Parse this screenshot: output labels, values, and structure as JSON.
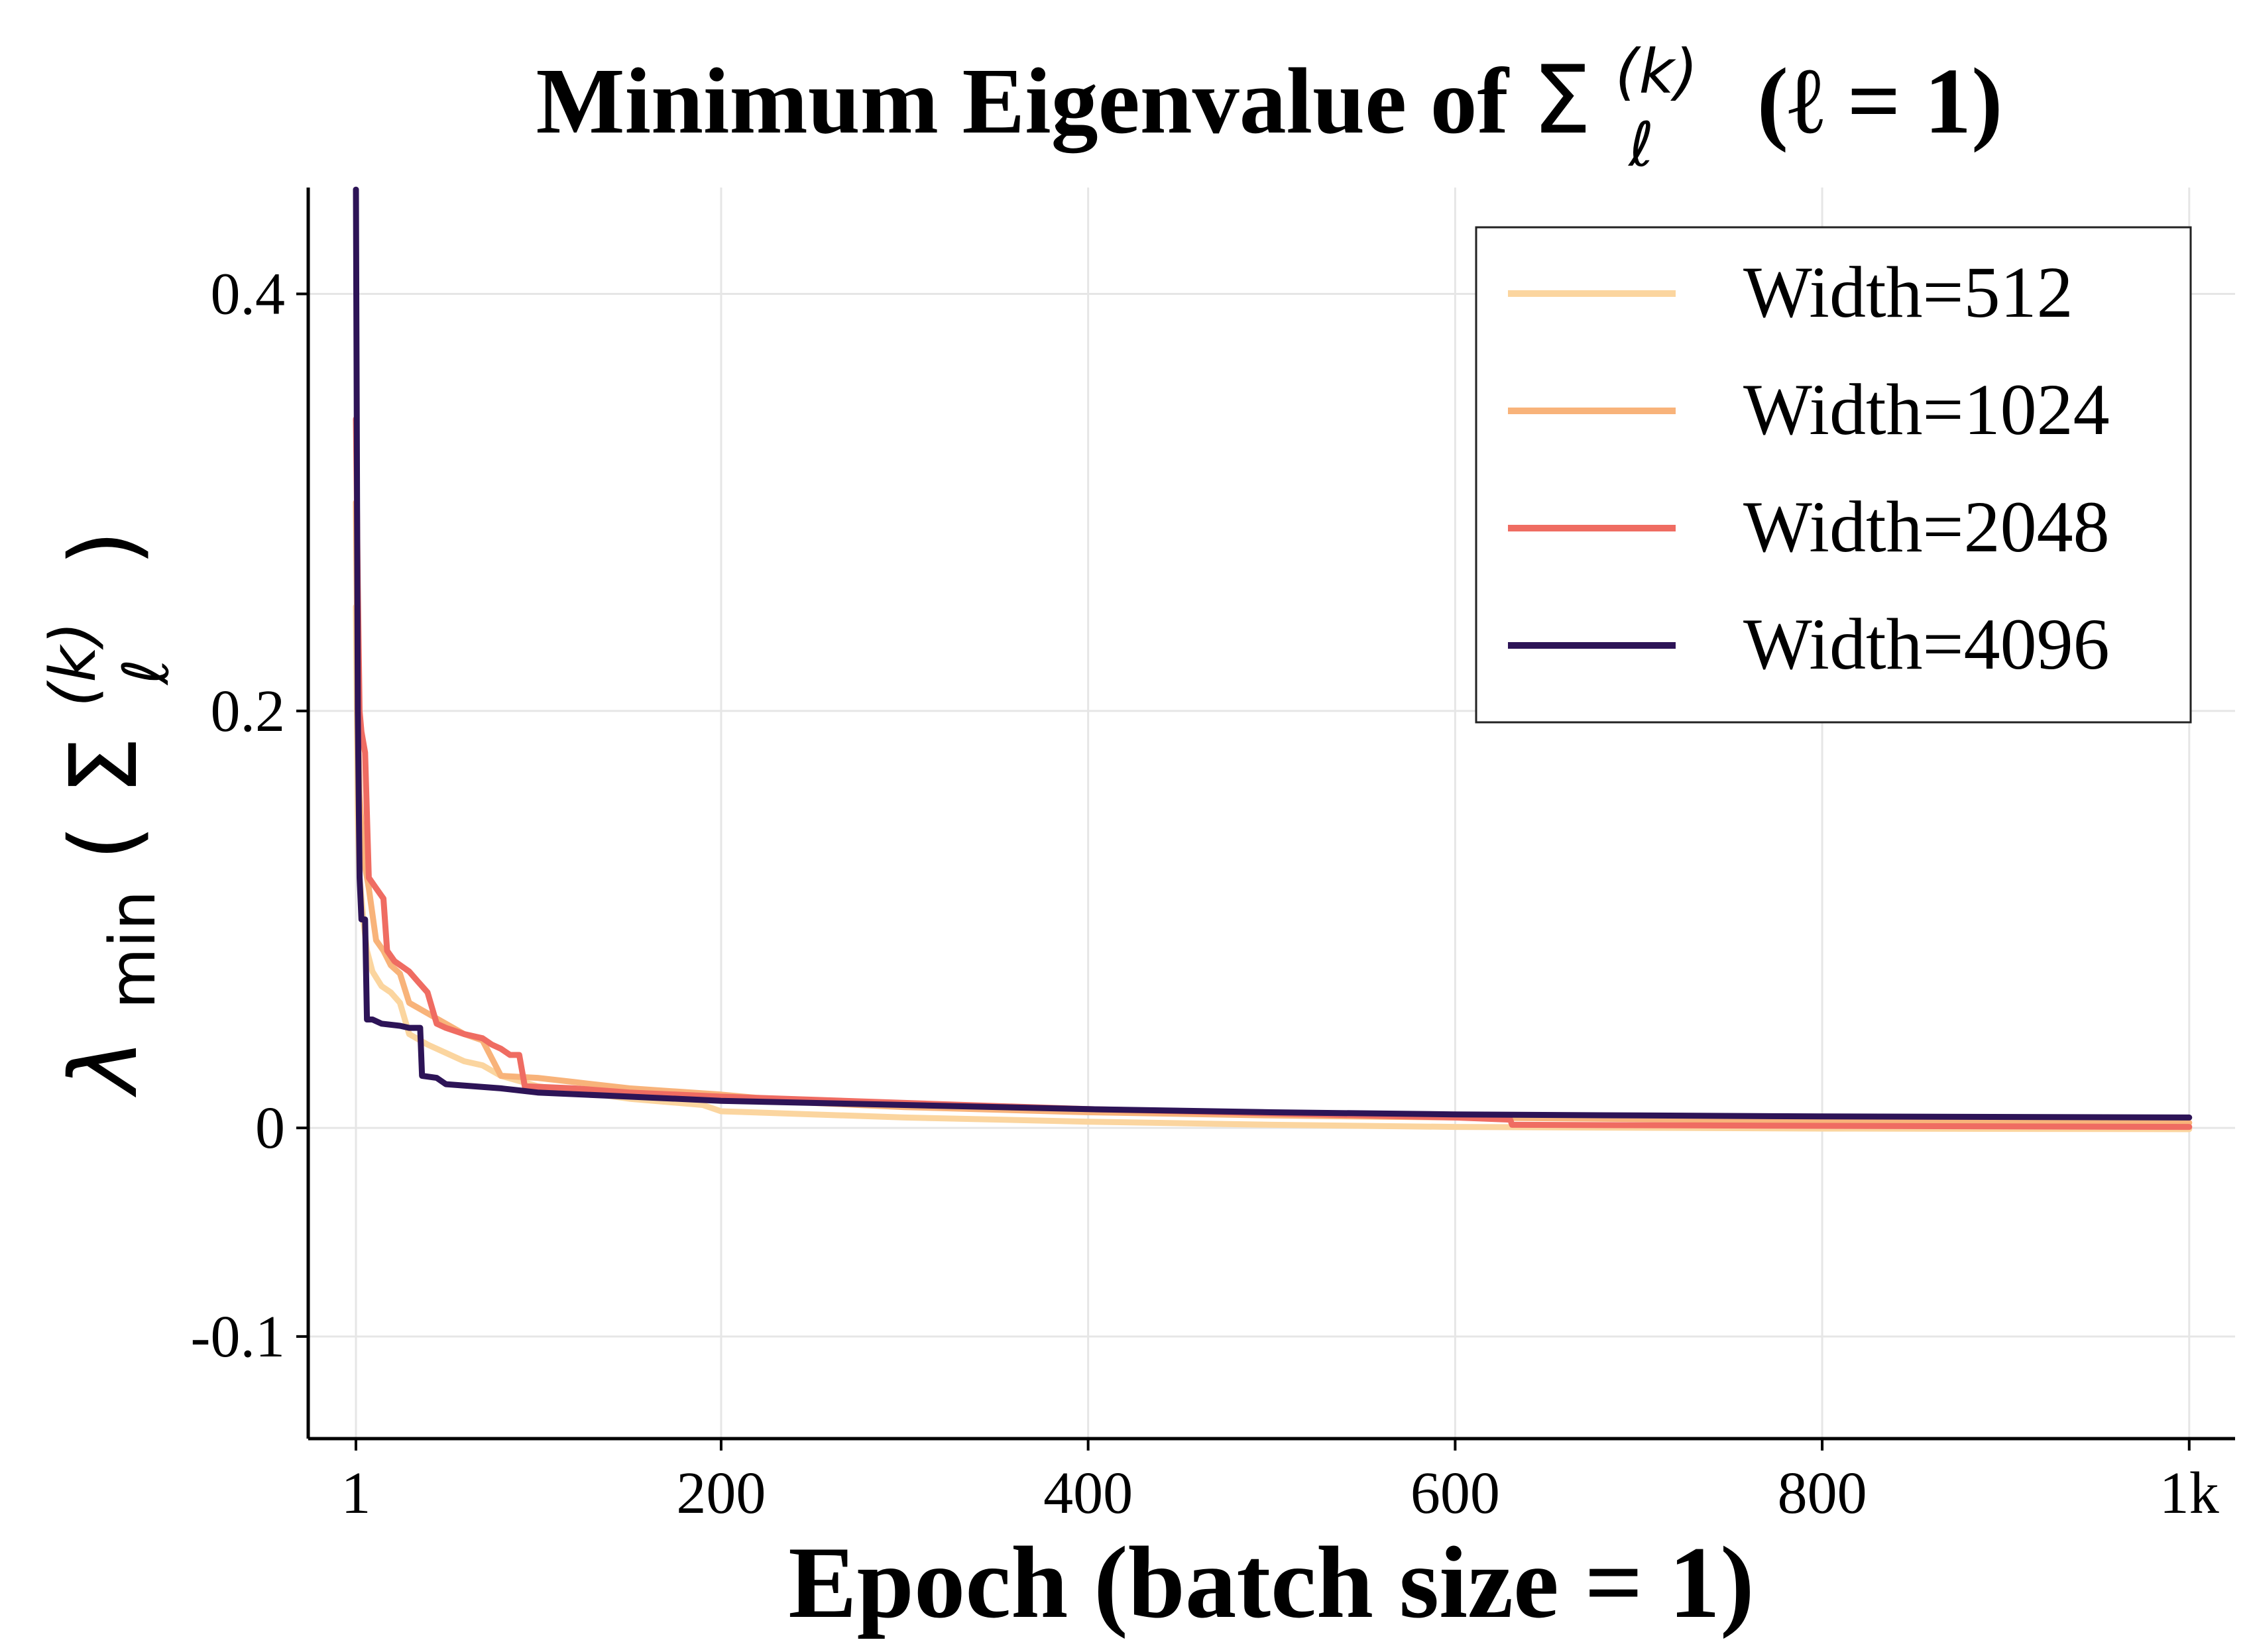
{
  "chart_data": {
    "type": "line",
    "title": {
      "prefix": "Minimum Eigenvalue of ",
      "symbol": "Σ",
      "superscript": "(k)",
      "subscript": "ℓ",
      "suffix": "(ℓ = 1)"
    },
    "xlabel": "Epoch (batch size = 1)",
    "ylabel": {
      "lambda": "λ",
      "sub": "min",
      "open": "(",
      "symbol": "Σ",
      "superscript": "(k)",
      "subscript": "ℓ",
      "close": ")"
    },
    "xlim": [
      -25,
      1025
    ],
    "ylim": [
      -0.149,
      0.451
    ],
    "x_ticks": [
      {
        "value": 1,
        "label": "1"
      },
      {
        "value": 200,
        "label": "200"
      },
      {
        "value": 400,
        "label": "400"
      },
      {
        "value": 600,
        "label": "600"
      },
      {
        "value": 800,
        "label": "800"
      },
      {
        "value": 1000,
        "label": "1k"
      }
    ],
    "y_ticks": [
      {
        "value": 0.4,
        "label": "0.4"
      },
      {
        "value": 0.2,
        "label": "0.2"
      },
      {
        "value": 0,
        "label": "0"
      },
      {
        "value": -0.1,
        "label": "-0.1"
      }
    ],
    "grid": true,
    "legend_position": "top-right",
    "series": [
      {
        "name": "Width=512",
        "color": "#fbd59f",
        "points": [
          [
            1,
            0.25
          ],
          [
            2,
            0.15
          ],
          [
            3,
            0.12
          ],
          [
            5,
            0.1
          ],
          [
            7,
            0.085
          ],
          [
            10,
            0.075
          ],
          [
            15,
            0.068
          ],
          [
            20,
            0.065
          ],
          [
            25,
            0.06
          ],
          [
            30,
            0.045
          ],
          [
            40,
            0.04
          ],
          [
            50,
            0.036
          ],
          [
            60,
            0.032
          ],
          [
            70,
            0.03
          ],
          [
            80,
            0.025
          ],
          [
            100,
            0.02
          ],
          [
            150,
            0.014
          ],
          [
            190,
            0.011
          ],
          [
            200,
            0.008
          ],
          [
            250,
            0.0065
          ],
          [
            300,
            0.005
          ],
          [
            400,
            0.003
          ],
          [
            500,
            0.0015
          ],
          [
            600,
            0.0005
          ],
          [
            800,
            -0.0003
          ],
          [
            1000,
            -0.0006
          ]
        ]
      },
      {
        "name": "Width=1024",
        "color": "#f8b37a",
        "points": [
          [
            1,
            0.3
          ],
          [
            2,
            0.2
          ],
          [
            3,
            0.16
          ],
          [
            5,
            0.13
          ],
          [
            8,
            0.115
          ],
          [
            12,
            0.09
          ],
          [
            16,
            0.085
          ],
          [
            20,
            0.078
          ],
          [
            25,
            0.074
          ],
          [
            30,
            0.06
          ],
          [
            40,
            0.055
          ],
          [
            50,
            0.05
          ],
          [
            60,
            0.045
          ],
          [
            70,
            0.042
          ],
          [
            80,
            0.025
          ],
          [
            100,
            0.024
          ],
          [
            120,
            0.022
          ],
          [
            150,
            0.019
          ],
          [
            200,
            0.016
          ],
          [
            250,
            0.012
          ],
          [
            300,
            0.01
          ],
          [
            400,
            0.0075
          ],
          [
            500,
            0.006
          ],
          [
            600,
            0.005
          ],
          [
            800,
            0.0035
          ],
          [
            1000,
            0.0025
          ]
        ]
      },
      {
        "name": "Width=2048",
        "color": "#ef6c62",
        "points": [
          [
            1,
            0.34
          ],
          [
            2,
            0.26
          ],
          [
            3,
            0.2
          ],
          [
            4,
            0.19
          ],
          [
            6,
            0.18
          ],
          [
            8,
            0.12
          ],
          [
            12,
            0.115
          ],
          [
            16,
            0.11
          ],
          [
            18,
            0.085
          ],
          [
            22,
            0.08
          ],
          [
            30,
            0.075
          ],
          [
            35,
            0.07
          ],
          [
            40,
            0.065
          ],
          [
            45,
            0.05
          ],
          [
            50,
            0.048
          ],
          [
            60,
            0.045
          ],
          [
            70,
            0.043
          ],
          [
            75,
            0.04
          ],
          [
            80,
            0.038
          ],
          [
            85,
            0.035
          ],
          [
            90,
            0.035
          ],
          [
            93,
            0.02
          ],
          [
            120,
            0.019
          ],
          [
            150,
            0.017
          ],
          [
            200,
            0.015
          ],
          [
            300,
            0.012
          ],
          [
            400,
            0.009
          ],
          [
            500,
            0.007
          ],
          [
            600,
            0.005
          ],
          [
            630,
            0.004
          ],
          [
            631,
            0.0015
          ],
          [
            800,
            0.001
          ],
          [
            1000,
            0.0005
          ]
        ]
      },
      {
        "name": "Width=4096",
        "color": "#2d1457",
        "points": [
          [
            1,
            0.45
          ],
          [
            2,
            0.2
          ],
          [
            3,
            0.12
          ],
          [
            4,
            0.1
          ],
          [
            6,
            0.1
          ],
          [
            7,
            0.052
          ],
          [
            10,
            0.052
          ],
          [
            15,
            0.05
          ],
          [
            25,
            0.049
          ],
          [
            30,
            0.048
          ],
          [
            36,
            0.048
          ],
          [
            37,
            0.025
          ],
          [
            45,
            0.024
          ],
          [
            50,
            0.021
          ],
          [
            65,
            0.02
          ],
          [
            80,
            0.019
          ],
          [
            90,
            0.018
          ],
          [
            100,
            0.017
          ],
          [
            150,
            0.015
          ],
          [
            200,
            0.013
          ],
          [
            300,
            0.011
          ],
          [
            400,
            0.009
          ],
          [
            500,
            0.0075
          ],
          [
            600,
            0.0065
          ],
          [
            700,
            0.006
          ],
          [
            800,
            0.0055
          ],
          [
            1000,
            0.005
          ]
        ]
      }
    ]
  }
}
